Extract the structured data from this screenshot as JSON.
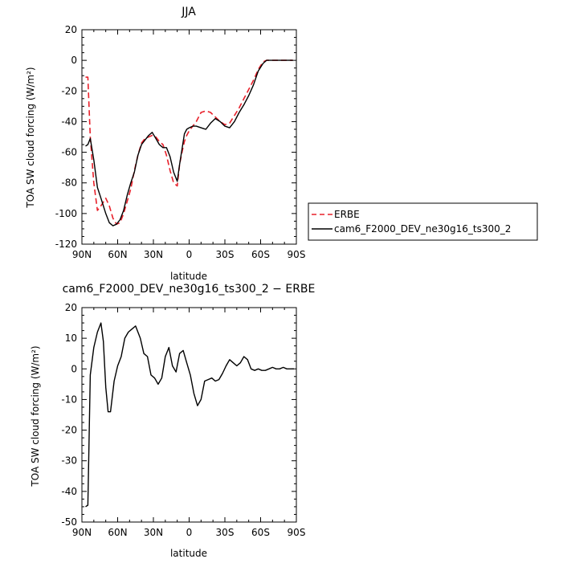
{
  "chart_data": [
    {
      "type": "line",
      "title": "JJA",
      "xlabel": "latitude",
      "ylabel": "TOA SW cloud forcing (W/m²)",
      "xlim": [
        90,
        -90
      ],
      "ylim": [
        -120,
        20
      ],
      "yticks": [
        20,
        0,
        -20,
        -40,
        -60,
        -80,
        -100,
        -120
      ],
      "xticks": [
        90,
        60,
        30,
        0,
        -30,
        -60,
        -90
      ],
      "xtick_labels": [
        "90N",
        "60N",
        "30N",
        "0",
        "30S",
        "60S",
        "90S"
      ],
      "legend": "right",
      "series": [
        {
          "name": "ERBE",
          "color": "#e8202a",
          "dash": "dashed",
          "x": [
            87,
            85,
            83,
            80,
            77,
            74,
            70,
            67,
            64,
            61,
            58,
            55,
            52,
            49,
            46,
            43,
            40,
            37,
            34,
            31,
            28,
            25,
            22,
            19,
            16,
            13,
            10,
            8,
            6,
            4,
            2,
            0,
            -3,
            -6,
            -10,
            -14,
            -18,
            -22,
            -26,
            -30,
            -34,
            -38,
            -42,
            -46,
            -50,
            -54,
            -58,
            -62,
            -65,
            -68,
            -71,
            -74,
            -77,
            -80,
            -83,
            -87
          ],
          "y": [
            -11,
            -11,
            -50,
            -80,
            -98,
            -95,
            -90,
            -95,
            -103,
            -107,
            -106,
            -100,
            -92,
            -84,
            -72,
            -62,
            -54,
            -51,
            -50,
            -49,
            -50,
            -53,
            -55,
            -62,
            -72,
            -80,
            -82,
            -68,
            -60,
            -53,
            -49,
            -46,
            -43,
            -40,
            -34,
            -33,
            -34,
            -37,
            -40,
            -42,
            -41,
            -36,
            -31,
            -25,
            -19,
            -13,
            -6,
            -1,
            0,
            0,
            0,
            0,
            0,
            0,
            0,
            0
          ]
        },
        {
          "name": "cam6_F2000_DEV_ne30g16_ts300_2",
          "color": "#000000",
          "dash": "solid",
          "x": [
            87,
            85,
            83,
            80,
            77,
            74,
            70,
            67,
            64,
            61,
            58,
            55,
            52,
            49,
            46,
            43,
            40,
            37,
            34,
            31,
            28,
            25,
            22,
            19,
            16,
            13,
            10,
            8,
            6,
            4,
            2,
            0,
            -3,
            -6,
            -10,
            -14,
            -18,
            -22,
            -26,
            -30,
            -34,
            -38,
            -42,
            -46,
            -50,
            -54,
            -58,
            -62,
            -65,
            -68,
            -71,
            -74,
            -77,
            -80,
            -83,
            -87
          ],
          "y": [
            -56,
            -55,
            -51,
            -65,
            -83,
            -90,
            -100,
            -106,
            -108,
            -107,
            -104,
            -98,
            -88,
            -80,
            -73,
            -62,
            -55,
            -52,
            -49,
            -47,
            -51,
            -55,
            -57,
            -57,
            -63,
            -73,
            -79,
            -68,
            -58,
            -48,
            -45,
            -44,
            -43,
            -43,
            -44,
            -45,
            -41,
            -38,
            -40,
            -43,
            -44,
            -40,
            -34,
            -29,
            -23,
            -16,
            -7,
            -2,
            0,
            0,
            0,
            0,
            0,
            0,
            0,
            0
          ]
        }
      ]
    },
    {
      "type": "line",
      "title": "cam6_F2000_DEV_ne30g16_ts300_2 − ERBE",
      "xlabel": "latitude",
      "ylabel": "TOA SW cloud forcing (W/m²)",
      "xlim": [
        90,
        -90
      ],
      "ylim": [
        -50,
        20
      ],
      "yticks": [
        20,
        10,
        0,
        -10,
        -20,
        -30,
        -40,
        -50
      ],
      "xticks": [
        90,
        60,
        30,
        0,
        -30,
        -60,
        -90
      ],
      "xtick_labels": [
        "90N",
        "60N",
        "30N",
        "0",
        "30S",
        "60S",
        "90S"
      ],
      "series": [
        {
          "color": "#000000",
          "dash": "solid",
          "x": [
            87,
            85,
            83,
            80,
            77,
            74,
            72,
            70,
            68,
            66,
            63,
            60,
            57,
            54,
            51,
            48,
            45,
            41,
            38,
            35,
            32,
            29,
            26,
            23,
            20,
            17,
            14,
            11,
            8,
            5,
            2,
            -1,
            -4,
            -7,
            -10,
            -13,
            -16,
            -19,
            -22,
            -25,
            -28,
            -31,
            -34,
            -37,
            -40,
            -43,
            -46,
            -49,
            -52,
            -55,
            -58,
            -61,
            -64,
            -67,
            -70,
            -73,
            -76,
            -79,
            -82,
            -85,
            -88
          ],
          "y": [
            -45,
            -44.5,
            -2,
            7,
            12,
            15,
            9,
            -6,
            -14,
            -14,
            -4,
            1,
            4,
            10,
            12,
            13,
            14,
            10,
            5,
            4,
            -2,
            -3,
            -5,
            -3,
            4,
            7,
            1,
            -1,
            5,
            6,
            2,
            -2,
            -8,
            -12,
            -10,
            -4,
            -3.5,
            -3,
            -4,
            -3.5,
            -1.5,
            1,
            3,
            2,
            1,
            2,
            4,
            3,
            0,
            -0.5,
            0,
            -0.5,
            -0.5,
            0,
            0.5,
            0,
            0,
            0.5,
            0,
            0,
            0
          ]
        }
      ]
    }
  ]
}
